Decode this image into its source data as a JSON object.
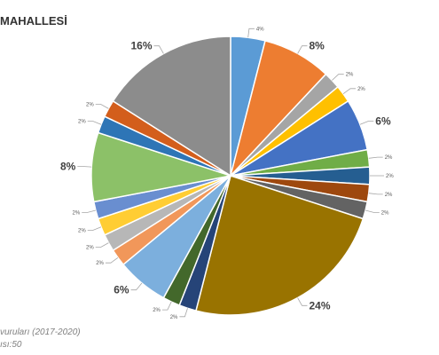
{
  "title": "MAHALLESİ",
  "footer": {
    "line1": "vuruları (2017-2020)",
    "line2": "ısı:50"
  },
  "chart_data": {
    "type": "pie",
    "title": "MAHALLESİ",
    "legend": "none",
    "slices": [
      {
        "label": "4%",
        "value": 4,
        "color": "#5b9bd5"
      },
      {
        "label": "8%",
        "value": 8,
        "color": "#ed7d31"
      },
      {
        "label": "2%",
        "value": 2,
        "color": "#a5a5a5"
      },
      {
        "label": "2%",
        "value": 2,
        "color": "#ffc000"
      },
      {
        "label": "6%",
        "value": 6,
        "color": "#4472c4"
      },
      {
        "label": "2%",
        "value": 2,
        "color": "#70ad47"
      },
      {
        "label": "2%",
        "value": 2,
        "color": "#255e91"
      },
      {
        "label": "2%",
        "value": 2,
        "color": "#9e480e"
      },
      {
        "label": "2%",
        "value": 2,
        "color": "#636363"
      },
      {
        "label": "24%",
        "value": 24,
        "color": "#997300"
      },
      {
        "label": "2%",
        "value": 2,
        "color": "#264478"
      },
      {
        "label": "2%",
        "value": 2,
        "color": "#43682b"
      },
      {
        "label": "6%",
        "value": 6,
        "color": "#7cafdd"
      },
      {
        "label": "2%",
        "value": 2,
        "color": "#f1975a"
      },
      {
        "label": "2%",
        "value": 2,
        "color": "#b7b7b7"
      },
      {
        "label": "2%",
        "value": 2,
        "color": "#ffcd33"
      },
      {
        "label": "2%",
        "value": 2,
        "color": "#698ed0"
      },
      {
        "label": "8%",
        "value": 8,
        "color": "#8cc168"
      },
      {
        "label": "2%",
        "value": 2,
        "color": "#2e75b6"
      },
      {
        "label": "2%",
        "value": 2,
        "color": "#d35e1c"
      },
      {
        "label": "16%",
        "value": 16,
        "color": "#8c8c8c"
      }
    ]
  }
}
